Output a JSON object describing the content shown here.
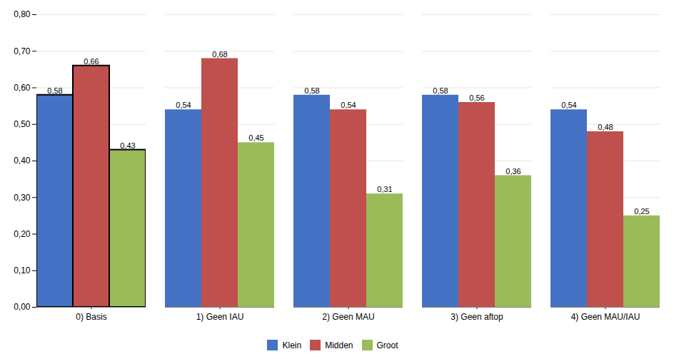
{
  "chart_data": {
    "type": "bar",
    "categories": [
      "0) Basis",
      "1) Geen IAU",
      "2) Geen MAU",
      "3) Geen aftop",
      "4) Geen MAU/IAU"
    ],
    "series": [
      {
        "name": "Klein",
        "color": "#4472C4",
        "values": [
          0.58,
          0.54,
          0.58,
          0.58,
          0.54
        ],
        "value_labels": [
          "0,58",
          "0,54",
          "0,58",
          "0,58",
          "0,54"
        ]
      },
      {
        "name": "Midden",
        "color": "#C0504D",
        "values": [
          0.66,
          0.68,
          0.54,
          0.56,
          0.48
        ],
        "value_labels": [
          "0,66",
          "0,68",
          "0,54",
          "0,56",
          "0,48"
        ]
      },
      {
        "name": "Groot",
        "color": "#9BBB59",
        "values": [
          0.43,
          0.45,
          0.31,
          0.36,
          0.25
        ],
        "value_labels": [
          "0,43",
          "0,45",
          "0,31",
          "0,36",
          "0,25"
        ]
      }
    ],
    "ylim": [
      0,
      0.8
    ],
    "yticks": [
      {
        "value": 0,
        "label": "0,00"
      },
      {
        "value": 0.1,
        "label": "0,10"
      },
      {
        "value": 0.2,
        "label": "0,20"
      },
      {
        "value": 0.3,
        "label": "0,30"
      },
      {
        "value": 0.4,
        "label": "0,40"
      },
      {
        "value": 0.5,
        "label": "0,50"
      },
      {
        "value": 0.6,
        "label": "0,60"
      },
      {
        "value": 0.7,
        "label": "0,70"
      },
      {
        "value": 0.8,
        "label": "0,80"
      }
    ],
    "grid": true,
    "legend": "bottom",
    "data_labels": true
  }
}
